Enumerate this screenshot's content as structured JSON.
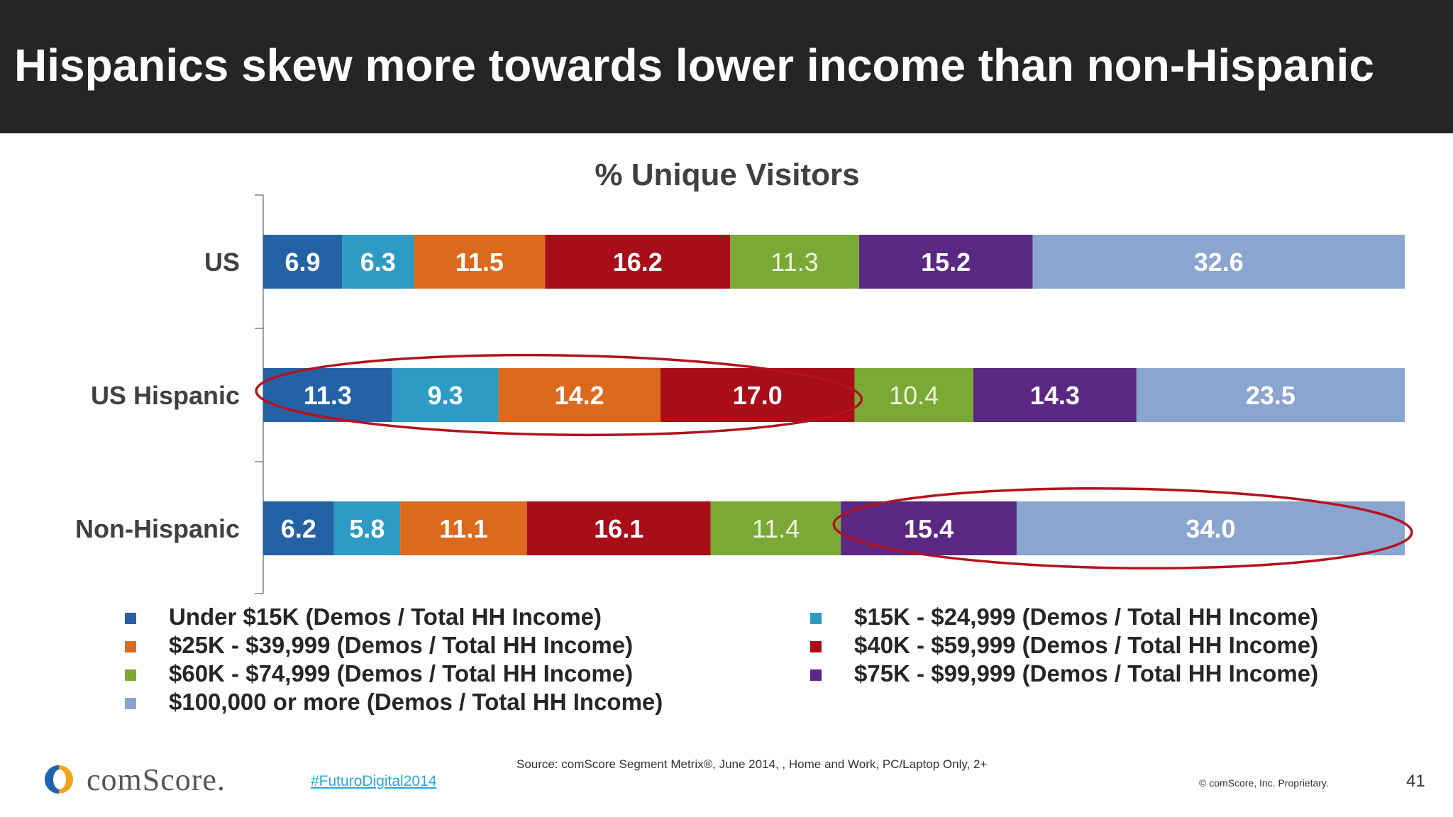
{
  "header": {
    "title": "Hispanics skew more towards lower income than non-Hispanic"
  },
  "chart_data": {
    "type": "bar",
    "orientation": "horizontal",
    "stacked": true,
    "title": "% Unique Visitors",
    "categories": [
      "US",
      "US Hispanic",
      "Non-Hispanic"
    ],
    "series": [
      {
        "name": "Under $15K (Demos / Total HH Income)",
        "color": "#2561a5",
        "values": [
          6.9,
          11.3,
          6.2
        ],
        "labels": [
          "6.9",
          "11.3",
          "6.2"
        ],
        "label_color": "#ffffff"
      },
      {
        "name": "$15K - $24,999 (Demos / Total HH Income)",
        "color": "#2e9bc6",
        "values": [
          6.3,
          9.3,
          5.8
        ],
        "labels": [
          "6.3",
          "9.3",
          "5.8"
        ],
        "label_color": "#ffffff"
      },
      {
        "name": "$25K - $39,999 (Demos / Total HH Income)",
        "color": "#dc6a1e",
        "values": [
          11.5,
          14.2,
          11.1
        ],
        "labels": [
          "11.5",
          "14.2",
          "11.1"
        ],
        "label_color": "#ffffff"
      },
      {
        "name": "$40K - $59,999 (Demos / Total HH Income)",
        "color": "#a80d18",
        "values": [
          16.2,
          17.0,
          16.1
        ],
        "labels": [
          "16.2",
          "17.0",
          "16.1"
        ],
        "label_color": "#ffffff"
      },
      {
        "name": "$60K - $74,999 (Demos / Total HH Income)",
        "color": "#7aa935",
        "values": [
          11.3,
          10.4,
          11.4
        ],
        "labels": [
          "11.3",
          "10.4",
          "11.4"
        ],
        "label_color": "#eef4e2",
        "label_weight": "normal"
      },
      {
        "name": "$75K - $99,999 (Demos / Total HH Income)",
        "color": "#5a2883",
        "values": [
          15.2,
          14.3,
          15.4
        ],
        "labels": [
          "15.2",
          "14.3",
          "15.4"
        ],
        "label_color": "#ffffff"
      },
      {
        "name": "$100,000 or more (Demos / Total HH Income)",
        "color": "#89a5d0",
        "values": [
          32.6,
          23.5,
          34.0
        ],
        "labels": [
          "32.6",
          "23.5",
          "34.0"
        ],
        "label_color": "#ffffff"
      }
    ],
    "xlim": [
      0,
      100
    ],
    "grid": false,
    "legend_position": "bottom",
    "highlights": [
      {
        "category": "US Hispanic",
        "from_series": 0,
        "to_series": 3
      },
      {
        "category": "Non-Hispanic",
        "from_series": 5,
        "to_series": 6
      }
    ]
  },
  "footer": {
    "logo_text": "comScore.",
    "hashtag": "#FuturoDigital2014",
    "source": "Source: comScore Segment Metrix®, June 2014, , Home and Work, PC/Laptop Only, 2+",
    "copyright": "© comScore, Inc. Proprietary.",
    "page_number": "41"
  }
}
